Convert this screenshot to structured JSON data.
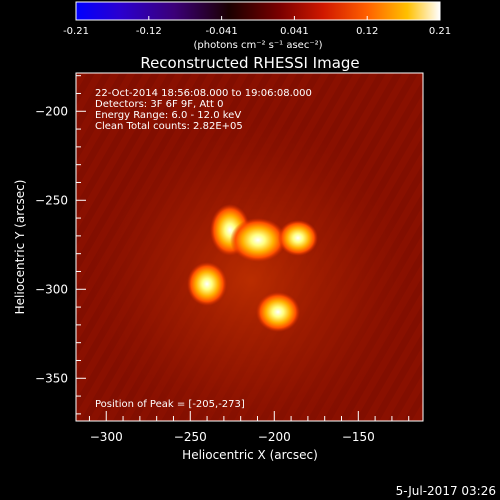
{
  "colorbar": {
    "tick_labels": [
      "-0.21",
      "-0.12",
      "-0.041",
      "0.041",
      "0.12",
      "0.21"
    ],
    "units_label": "(photons cm⁻² s⁻¹ asec⁻²)"
  },
  "image": {
    "title": "Reconstructed RHESSI Image",
    "info_lines": [
      "22-Oct-2014 18:56:08.000 to 19:06:08.000",
      "Detectors: 3F 6F 9F, Att 0",
      "Energy Range: 6.0 - 12.0 keV",
      "Clean     Total counts: 2.82E+05"
    ],
    "peak_label": "Position of Peak = [-205,-273]",
    "colors": {
      "frame": "#ffffff",
      "background": "#8a1000"
    }
  },
  "axes": {
    "xlabel": "Heliocentric X (arcsec)",
    "ylabel": "Heliocentric Y (arcsec)",
    "x_tick_labels": [
      "-300",
      "-250",
      "-200",
      "-150"
    ],
    "y_tick_labels": [
      "-200",
      "-250",
      "-300",
      "-350"
    ]
  },
  "footer": {
    "date": "5-Jul-2017 03:26"
  }
}
